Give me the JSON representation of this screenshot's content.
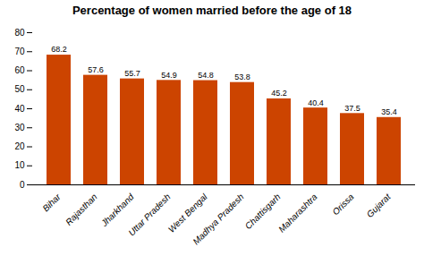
{
  "chart_data": {
    "type": "bar",
    "title": "Percentage of women married before the age of 18",
    "categories": [
      "Bihar",
      "Rajasthan",
      "Jharkhand",
      "Uttar Pradesh",
      "West Bengal",
      "Madhya Pradesh",
      "Chattisgarh",
      "Maharashtra",
      "Orissa",
      "Gujarat"
    ],
    "values": [
      68.2,
      57.6,
      55.7,
      54.9,
      54.8,
      53.8,
      45.2,
      40.4,
      37.5,
      35.4
    ],
    "color": "#CC4400",
    "ylim": [
      0,
      80
    ],
    "yticks": [
      0,
      10,
      20,
      30,
      40,
      50,
      60,
      70,
      80
    ],
    "grid": false,
    "data_labels": true
  }
}
